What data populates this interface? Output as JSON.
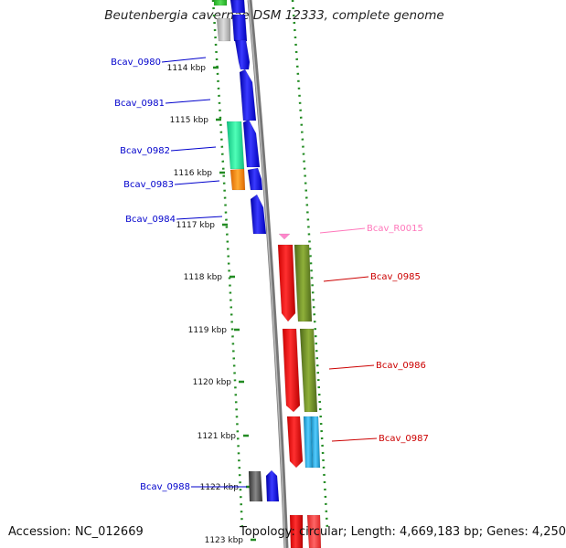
{
  "title": "Beutenbergia cavernae DSM 12333, complete genome",
  "footer": {
    "accession": "Accession: NC_012669",
    "topology": "Topology: circular; Length: 4,669,183 bp; Genes: 4,250"
  },
  "colors": {
    "blue_gene": "#0000ee",
    "red_gene": "#ee0000",
    "olive_gene": "#6b8e23",
    "teal_gene": "#20e0a0",
    "orange_gene": "#ff8800",
    "gray_gene": "#555555",
    "light_gray_gene": "#bbbbbb",
    "cyan_gene": "#22aadd",
    "pink_rna": "#ff88cc",
    "tick_green": "#228b22",
    "label_blue": "#0000cc",
    "label_red": "#cc0000",
    "label_pink": "#ff77bb",
    "backbone": "#888888"
  },
  "scale": {
    "unit": "kbp",
    "ticks": [
      "1114 kbp",
      "1115 kbp",
      "1116 kbp",
      "1117 kbp",
      "1118 kbp",
      "1119 kbp",
      "1120 kbp",
      "1121 kbp",
      "1122 kbp",
      "1123 kbp"
    ]
  },
  "gene_labels": [
    {
      "text": "Bcav_0980",
      "color": "blue"
    },
    {
      "text": "Bcav_0981",
      "color": "blue"
    },
    {
      "text": "Bcav_0982",
      "color": "blue"
    },
    {
      "text": "Bcav_0983",
      "color": "blue"
    },
    {
      "text": "Bcav_0984",
      "color": "blue"
    },
    {
      "text": "Bcav_R0015",
      "color": "pink"
    },
    {
      "text": "Bcav_0985",
      "color": "red"
    },
    {
      "text": "Bcav_0986",
      "color": "red"
    },
    {
      "text": "Bcav_0987",
      "color": "red"
    },
    {
      "text": "Bcav_0988",
      "color": "blue"
    }
  ]
}
